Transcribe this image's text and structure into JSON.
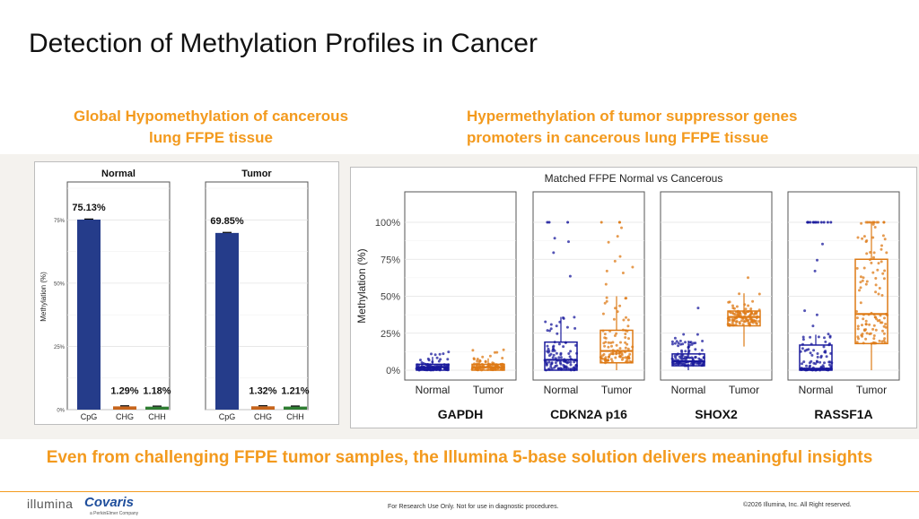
{
  "slide": {
    "title": "Detection of Methylation Profiles in Cancer",
    "left_heading_line1": "Global Hypomethylation of cancerous",
    "left_heading_line2": "lung FFPE tissue",
    "right_heading_line1": "Hypermethylation of tumor suppressor genes",
    "right_heading_line2": "promoters in cancerous lung FFPE tissue",
    "tagline": "Even from challenging FFPE tumor samples, the Illumina 5-base solution delivers meaningful insights",
    "footer_center": "For Research Use Only. Not for use in diagnostic procedures.",
    "footer_right": "©2026 Illumina, Inc. All Right reserved.",
    "logo_illumina": "illumina",
    "logo_covaris": "Covaris",
    "logo_covaris_sub": "a PerkinElmer Company"
  },
  "colors": {
    "orange": "#F39A1E",
    "cpg": "#253C8A",
    "chg": "#C7651C",
    "chh": "#2E7D32",
    "normal_points": "#1A1A9C",
    "tumor_points": "#DD7A15"
  },
  "chart_data": [
    {
      "type": "bar",
      "ylabel": "Methylation (%)",
      "yticks": [
        "0%",
        "25%",
        "50%",
        "75%"
      ],
      "ylim": [
        0,
        90
      ],
      "categories": [
        "CpG",
        "CHG",
        "CHH"
      ],
      "panels": [
        {
          "name": "Normal",
          "values": [
            75.13,
            1.29,
            1.18
          ],
          "labels": [
            "75.13%",
            "1.29%",
            "1.18%"
          ]
        },
        {
          "name": "Tumor",
          "values": [
            69.85,
            1.32,
            1.21
          ],
          "labels": [
            "69.85%",
            "1.32%",
            "1.21%"
          ]
        }
      ],
      "grid": true
    },
    {
      "type": "scatter",
      "title": "Matched FFPE Normal vs Cancerous",
      "ylabel": "Methylation (%)",
      "yticks": [
        "0%",
        "25%",
        "50%",
        "75%",
        "100%"
      ],
      "ylim": [
        0,
        100
      ],
      "groups": [
        "Normal",
        "Tumor"
      ],
      "style": "box plot with jittered points",
      "genes": [
        {
          "name": "GAPDH",
          "normal": {
            "q1": 0,
            "median": 2,
            "q3": 4,
            "whisker_low": 0,
            "whisker_high": 9,
            "max": 13
          },
          "tumor": {
            "q1": 0,
            "median": 2,
            "q3": 4,
            "whisker_low": 0,
            "whisker_high": 8,
            "max": 15
          }
        },
        {
          "name": "CDKN2A_p16",
          "normal": {
            "q1": 0,
            "median": 7,
            "q3": 19,
            "whisker_low": 0,
            "whisker_high": 36,
            "max": 100
          },
          "tumor": {
            "q1": 5,
            "median": 13,
            "q3": 27,
            "whisker_low": 0,
            "whisker_high": 50,
            "max": 100
          }
        },
        {
          "name": "SHOX2",
          "normal": {
            "q1": 3,
            "median": 6,
            "q3": 11,
            "whisker_low": 0,
            "whisker_high": 20,
            "max": 43
          },
          "tumor": {
            "q1": 30,
            "median": 36,
            "q3": 40,
            "whisker_low": 16,
            "whisker_high": 52,
            "max": 65
          }
        },
        {
          "name": "RASSF1A",
          "normal": {
            "q1": 0,
            "median": 1,
            "q3": 17,
            "whisker_low": 0,
            "whisker_high": 24,
            "max": 100
          },
          "tumor": {
            "q1": 18,
            "median": 38,
            "q3": 75,
            "whisker_low": 0,
            "whisker_high": 100,
            "max": 100
          }
        }
      ],
      "grid": true
    }
  ]
}
